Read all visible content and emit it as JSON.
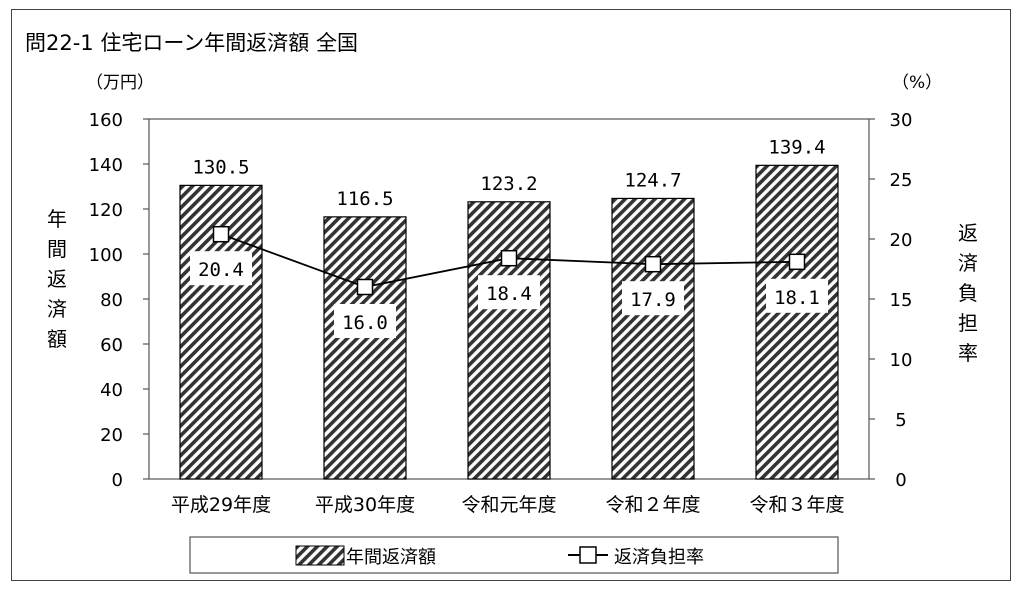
{
  "chart_data": {
    "type": "bar",
    "title": "問22-1 住宅ローン年間返済額 全国",
    "categories": [
      "平成29年度",
      "平成30年度",
      "令和元年度",
      "令和２年度",
      "令和３年度"
    ],
    "series": [
      {
        "name": "年間返済額",
        "type": "bar",
        "axis": "left",
        "values": [
          130.5,
          116.5,
          123.2,
          124.7,
          139.4
        ],
        "labels": [
          "130.5",
          "116.5",
          "123.2",
          "124.7",
          "139.4"
        ]
      },
      {
        "name": "返済負担率",
        "type": "line",
        "axis": "right",
        "values": [
          20.4,
          16.0,
          18.4,
          17.9,
          18.1
        ],
        "labels": [
          "20.4",
          "16.0",
          "18.4",
          "17.9",
          "18.1"
        ]
      }
    ],
    "ylabel": "年間返済額",
    "ylabel_unit": "（万円）",
    "ylim": [
      0,
      160
    ],
    "yticks": [
      0,
      20,
      40,
      60,
      80,
      100,
      120,
      140,
      160
    ],
    "y2label": "返済負担率",
    "y2label_unit": "（%）",
    "y2lim": [
      0,
      30
    ],
    "y2ticks": [
      0,
      5,
      10,
      15,
      20,
      25,
      30
    ],
    "grid": false,
    "legend_position": "bottom"
  },
  "colors": {
    "bar_hatch": "#333333",
    "bar_fill": "#ffffff",
    "line": "#000000",
    "marker_fill": "#ffffff"
  }
}
